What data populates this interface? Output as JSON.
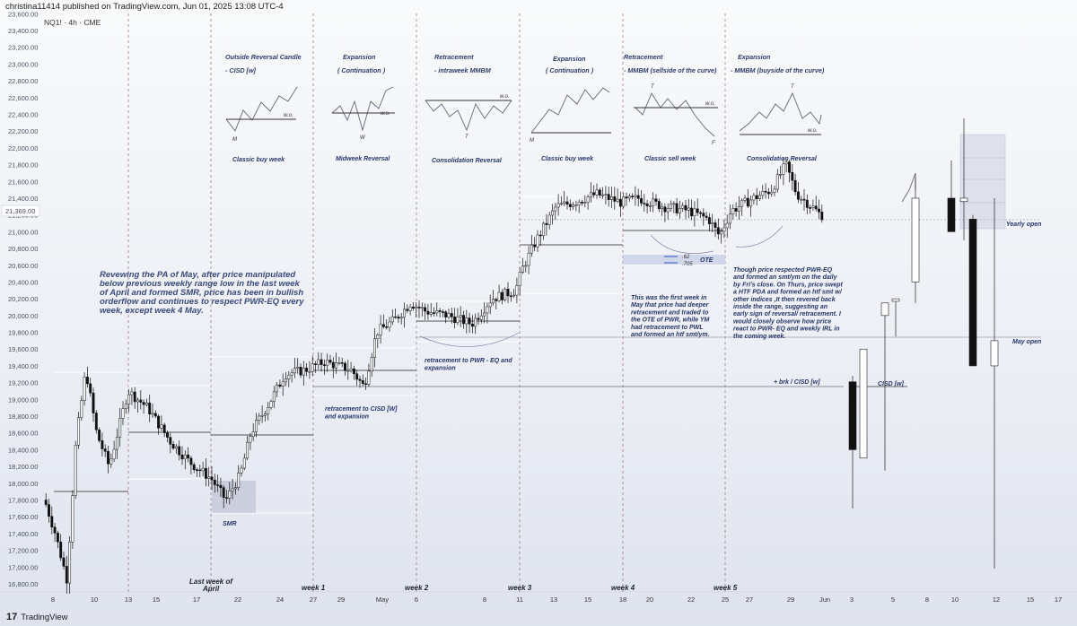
{
  "header": "christina11414 published on TradingView.com, Jun 01, 2025 13:08 UTC-4",
  "symbol": "NQ1! · 4h · CME",
  "footer_brand": "TradingView",
  "chart_data": {
    "type": "candlestick",
    "instrument": "NQ1!",
    "timeframe": "4h",
    "exchange": "CME",
    "y_ticks": [
      23600,
      23400,
      23200,
      23000,
      22800,
      22600,
      22400,
      22200,
      22000,
      21800,
      21600,
      21400,
      21200,
      21000,
      20800,
      20600,
      20400,
      20200,
      20000,
      19800,
      19600,
      19400,
      19200,
      19000,
      18800,
      18600,
      18400,
      18200,
      18000,
      17800,
      17600,
      17400,
      17200,
      17000,
      16800
    ],
    "ylim": [
      16740,
      23700
    ],
    "current_price_label": "21,369.00",
    "x_ticks": [
      "8",
      "10",
      "13",
      "15",
      "17",
      "22",
      "24",
      "27",
      "29",
      "May",
      "6",
      "8",
      "11",
      "13",
      "15",
      "18",
      "20",
      "22",
      "25",
      "27",
      "29",
      "Jun",
      "3",
      "5",
      "8",
      "10",
      "12",
      "15",
      "17"
    ],
    "week_labels": [
      "Last week of April",
      "week 1",
      "week 2",
      "week 3",
      "week 4",
      "week 5"
    ],
    "horizontal_levels": [
      {
        "label": "Yearly open",
        "value": 21270
      },
      {
        "label": "May open",
        "value": 19830
      },
      {
        "label": "+ brk / CISD [w]",
        "value": 19225
      }
    ],
    "ote_levels": [
      ".62",
      ".705"
    ],
    "ote_label": "OTE",
    "cisd_label": "CISD [w]",
    "smr_label": "SMR",
    "sample_candles_stride6": [
      [
        17800,
        17900,
        17300,
        17500
      ],
      [
        17400,
        19300,
        17300,
        19100
      ],
      [
        19100,
        19200,
        18200,
        18600
      ],
      [
        18600,
        19100,
        18500,
        18900
      ],
      [
        19100,
        19250,
        18900,
        19200
      ],
      [
        18900,
        18950,
        18300,
        18600
      ],
      [
        18300,
        18400,
        17950,
        18200
      ],
      [
        17900,
        18000,
        17700,
        17900
      ],
      [
        18000,
        18600,
        17900,
        18500
      ],
      [
        18700,
        19100,
        18600,
        19000
      ],
      [
        19100,
        19400,
        19000,
        19300
      ],
      [
        19300,
        19500,
        19200,
        19350
      ],
      [
        19300,
        19400,
        19100,
        19200
      ],
      [
        19700,
        19900,
        19600,
        19800
      ],
      [
        19950,
        20200,
        19900,
        20100
      ],
      [
        20100,
        20200,
        19950,
        20000
      ],
      [
        20000,
        20150,
        19800,
        19900
      ],
      [
        19900,
        20300,
        19850,
        20200
      ],
      [
        20600,
        20850,
        20500,
        20800
      ],
      [
        21000,
        21150,
        20900,
        21100
      ],
      [
        21200,
        21400,
        21150,
        21350
      ],
      [
        21300,
        21450,
        21200,
        21350
      ],
      [
        21300,
        21450,
        21200,
        21400
      ],
      [
        21200,
        21350,
        21050,
        21300
      ],
      [
        21200,
        21300,
        21000,
        21150
      ],
      [
        20950,
        21150,
        20850,
        21050
      ],
      [
        21300,
        21450,
        21250,
        21350
      ],
      [
        21500,
        21850,
        21400,
        21500
      ],
      [
        21200,
        21300,
        21100,
        21150
      ]
    ],
    "weekly_candles": [
      [
        19210,
        19280,
        17700,
        18400
      ],
      [
        18300,
        19600,
        18300,
        19600
      ],
      [
        20000,
        20050,
        18150,
        20150
      ],
      [
        20170,
        20200,
        19750,
        20200
      ],
      [
        20400,
        21650,
        20150,
        21400
      ],
      [
        21400,
        21850,
        21050,
        21000
      ],
      [
        21360,
        22350,
        20900,
        21400
      ],
      [
        21150,
        21200,
        19520,
        19400
      ],
      [
        19400,
        21400,
        16980,
        19700
      ]
    ]
  },
  "annotations": {
    "a1_title": "Outside Reversal Candle",
    "a1_sub": "- CISD [w]",
    "a1_caption": "Classic buy week",
    "a2_title": "Expansion",
    "a2_sub": "( Continuation )",
    "a2_caption": "Midweek Reversal",
    "a3_title": "Retracement",
    "a3_sub": "- intraweek MMBM",
    "a3_caption": "Consolidation Reversal",
    "a4_title": "Expansion",
    "a4_sub": "( Continuation )",
    "a4_caption": "Classic buy week",
    "a5_title": "Retracement",
    "a5_sub": "- MMBM (sellside of the curve)",
    "a5_caption": "Classic sell week",
    "a6_title": "Expansion",
    "a6_sub": "-  MMBM (buyside of the curve)",
    "a6_caption": "Consolidation Reversal",
    "wo": "w.o.",
    "M": "M",
    "W": "W",
    "T": "T",
    "F": "F",
    "summary": [
      "Revewing the PA of May, after price manipulated",
      "below previous weekly range low in the last week",
      "of April and formed SMR, price has been in bullish",
      "orderflow and continues to respect PWR-EQ every",
      "week, except week 4 May."
    ],
    "note_cisd": [
      "retracement to CISD [W]",
      "and expansion"
    ],
    "note_pwr": [
      "retracement to PWR - EQ  and",
      "expansion"
    ],
    "note_week4": [
      "This was the first week in",
      "May that price had deeper",
      "retracement and traded to",
      "the OTE of PWR, while YM",
      "had retracement to PWL",
      "and formed an htf smt/ym."
    ],
    "note_week5": [
      "Though price respected PWR-EQ",
      "and formed an smt/ym on the daily",
      "by Fri's close. On Thurs, price swept",
      "a HTF PDA and formed an htf smt w/",
      "other indices ,It then revered back",
      "inside the range, suggesting an",
      "early sign of reversal/ retracement. I",
      "would closely observe how price",
      "react to PWR- EQ and weekly IRL in",
      "the coming week."
    ]
  }
}
